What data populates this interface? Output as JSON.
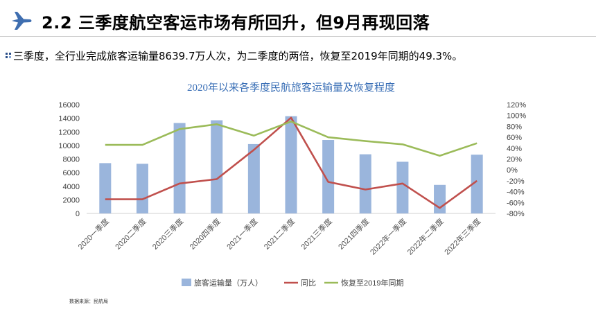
{
  "header": {
    "title": "2.2 三季度航空客运市场有所回升，但9月再现回落",
    "icon": "airplane-icon"
  },
  "subtitle": "三季度，全行业完成旅客运输量8639.7万人次，为二季度的两倍，恢复至2019年同期的49.3%。",
  "source": "数据来源：民航局",
  "colors": {
    "bar": "#9ab5dc",
    "yoy": "#c0504d",
    "recovery": "#9bbb59",
    "title": "#3a6fb6",
    "plane": "#3f6eb0"
  },
  "chart_data": {
    "type": "bar",
    "title": "2020年以来各季度民航旅客运输量及恢复程度",
    "categories": [
      "2020一季度",
      "2020二季度",
      "2020三季度",
      "2020四季度",
      "2021一季度",
      "2021二季度",
      "2021三季度",
      "2021四季度",
      "2022年一季度",
      "2022年二季度",
      "2022年三季度"
    ],
    "y_left": {
      "min": 0,
      "max": 16000,
      "step": 2000,
      "ticks": [
        "0",
        "2000",
        "4000",
        "6000",
        "8000",
        "10000",
        "12000",
        "14000",
        "16000"
      ]
    },
    "y_right": {
      "min": -80,
      "max": 120,
      "step": 20,
      "ticks": [
        "-80%",
        "-60%",
        "-40%",
        "-20%",
        "0%",
        "20%",
        "40%",
        "60%",
        "80%",
        "100%",
        "120%"
      ]
    },
    "series": [
      {
        "name": "旅客运输量（万人）",
        "type": "bar",
        "axis": "left",
        "values": [
          7400,
          7300,
          13300,
          13700,
          10200,
          14300,
          10800,
          8700,
          7600,
          4200,
          8640
        ]
      },
      {
        "name": "同比",
        "type": "line",
        "axis": "right",
        "values": [
          -54,
          -54,
          -25,
          -17,
          37,
          96,
          -22,
          -36,
          -25,
          -70,
          -20
        ]
      },
      {
        "name": "恢复至2019年同期",
        "type": "line",
        "axis": "right",
        "values": [
          46,
          46,
          75,
          84,
          63,
          89,
          60,
          53,
          47,
          26,
          49
        ]
      }
    ],
    "legend": {
      "position": "bottom"
    },
    "grid": false
  }
}
